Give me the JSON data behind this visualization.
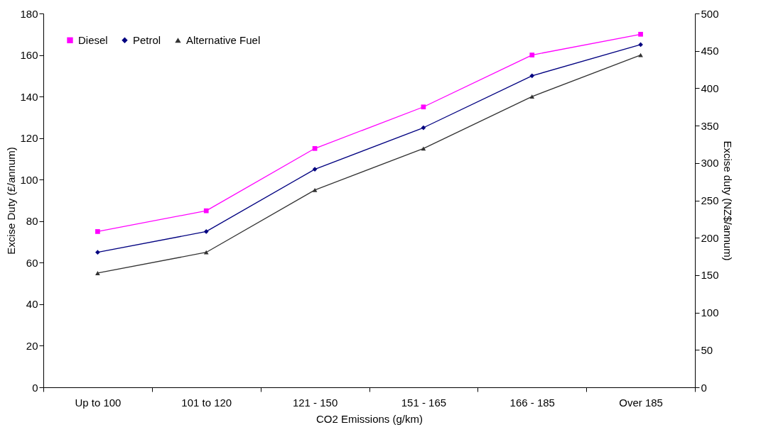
{
  "chart_data": {
    "type": "line",
    "xlabel": "CO2 Emissions (g/km)",
    "ylabel": "Excise Duty (£/annum)",
    "y2label": "Excise duty (NZ$/annum)",
    "categories": [
      "Up to 100",
      "101 to 120",
      "121 - 150",
      "151 - 165",
      "166 - 185",
      "Over 185"
    ],
    "series": [
      {
        "name": "Diesel",
        "color": "#ff00ff",
        "marker": "square",
        "values": [
          75,
          85,
          115,
          135,
          160,
          170
        ]
      },
      {
        "name": "Petrol",
        "color": "#000080",
        "marker": "diamond",
        "values": [
          65,
          75,
          105,
          125,
          150,
          165
        ]
      },
      {
        "name": "Alternative Fuel",
        "color": "#333333",
        "marker": "triangle",
        "values": [
          55,
          65,
          95,
          115,
          140,
          160
        ]
      }
    ],
    "ylim": [
      0,
      180
    ],
    "yticks": [
      0,
      20,
      40,
      60,
      80,
      100,
      120,
      140,
      160,
      180
    ],
    "y2lim": [
      0,
      500
    ],
    "y2ticks": [
      0,
      50,
      100,
      150,
      200,
      250,
      300,
      350,
      400,
      450,
      500
    ],
    "grid": false,
    "legend": "top left",
    "line_style": "solid"
  }
}
